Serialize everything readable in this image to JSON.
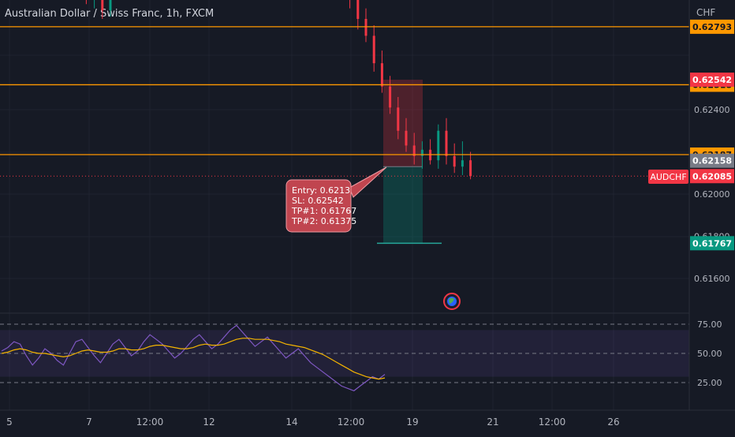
{
  "header": {
    "title": "Australian Dollar / Swiss Franc, 1h, FXCM"
  },
  "chart_data": {
    "type": "candlestick",
    "symbol": "AUDCHF",
    "currency_label": "CHF",
    "price_axis": {
      "range": [
        0.6147,
        0.6295
      ],
      "tick_values": [
        0.624,
        0.62,
        0.618,
        0.616
      ],
      "tick_labels": [
        "0.62400",
        "0.62000",
        "0.61800",
        "0.61600"
      ]
    },
    "time_axis": {
      "tick_labels": [
        "5",
        "7",
        "12:00",
        "12",
        "14",
        "12:00",
        "19",
        "21",
        "12:00",
        "26"
      ]
    },
    "horizontal_lines": [
      {
        "price": 0.62793,
        "label": "0.62793"
      },
      {
        "price": 0.62518,
        "label": "0.62518"
      },
      {
        "price": 0.62187,
        "label": "0.62187"
      }
    ],
    "price_badges": [
      {
        "price": 0.62542,
        "label": "0.62542",
        "color": "#f23645"
      },
      {
        "price": 0.62158,
        "label": "0.62158",
        "color": "#787b86"
      },
      {
        "price": 0.62085,
        "label": "0.62085",
        "color": "#f23645"
      },
      {
        "price": 0.61767,
        "label": "0.61767",
        "color": "#089981"
      }
    ],
    "last_price": {
      "price": 0.62085,
      "symbol_badge": "AUDCHF"
    },
    "candles": [
      {
        "t": 0,
        "o": 0.6301,
        "h": 0.6312,
        "l": 0.629,
        "c": 0.6296
      },
      {
        "t": 1,
        "o": 0.6296,
        "h": 0.6305,
        "l": 0.6288,
        "c": 0.63
      },
      {
        "t": 2,
        "o": 0.63,
        "h": 0.6308,
        "l": 0.6283,
        "c": 0.6287
      },
      {
        "t": 3,
        "o": 0.6287,
        "h": 0.63,
        "l": 0.6284,
        "c": 0.6296
      },
      {
        "t": 20,
        "o": 0.6304,
        "h": 0.6315,
        "l": 0.6296,
        "c": 0.6301
      },
      {
        "t": 21,
        "o": 0.6301,
        "h": 0.6306,
        "l": 0.6288,
        "c": 0.6292
      },
      {
        "t": 22,
        "o": 0.6292,
        "h": 0.6298,
        "l": 0.6278,
        "c": 0.6283
      },
      {
        "t": 23,
        "o": 0.6283,
        "h": 0.6288,
        "l": 0.6272,
        "c": 0.6275
      },
      {
        "t": 24,
        "o": 0.6275,
        "h": 0.628,
        "l": 0.6258,
        "c": 0.6262
      },
      {
        "t": 25,
        "o": 0.6262,
        "h": 0.6268,
        "l": 0.6248,
        "c": 0.6251
      },
      {
        "t": 26,
        "o": 0.6251,
        "h": 0.6256,
        "l": 0.6238,
        "c": 0.6241
      },
      {
        "t": 27,
        "o": 0.6241,
        "h": 0.6246,
        "l": 0.6226,
        "c": 0.623
      },
      {
        "t": 28,
        "o": 0.623,
        "h": 0.6236,
        "l": 0.622,
        "c": 0.6223
      },
      {
        "t": 29,
        "o": 0.6223,
        "h": 0.6229,
        "l": 0.6214,
        "c": 0.6218
      },
      {
        "t": 30,
        "o": 0.6218,
        "h": 0.6225,
        "l": 0.6212,
        "c": 0.6221
      },
      {
        "t": 31,
        "o": 0.6221,
        "h": 0.6226,
        "l": 0.6214,
        "c": 0.6216
      },
      {
        "t": 32,
        "o": 0.6216,
        "h": 0.6233,
        "l": 0.6212,
        "c": 0.623
      },
      {
        "t": 33,
        "o": 0.623,
        "h": 0.6236,
        "l": 0.6214,
        "c": 0.6218
      },
      {
        "t": 34,
        "o": 0.6218,
        "h": 0.6224,
        "l": 0.621,
        "c": 0.6213
      },
      {
        "t": 35,
        "o": 0.6213,
        "h": 0.6225,
        "l": 0.6209,
        "c": 0.6216
      },
      {
        "t": 36,
        "o": 0.6216,
        "h": 0.622,
        "l": 0.6207,
        "c": 0.62085
      }
    ],
    "position": {
      "entry": 0.6213,
      "stop_loss": 0.62542,
      "take_profit": 0.61767,
      "note_lines": [
        "Entry: 0.6213",
        "SL: 0.62542",
        "TP#1: 0.61767",
        "TP#2: 0.61375"
      ]
    },
    "rsi": {
      "range": [
        0,
        100
      ],
      "levels": [
        75,
        50,
        25
      ],
      "level_labels": [
        "75.00",
        "50.00",
        "25.00"
      ],
      "band": [
        30,
        70
      ],
      "rsi_values": [
        52,
        55,
        60,
        58,
        48,
        40,
        46,
        54,
        50,
        44,
        40,
        50,
        60,
        62,
        55,
        48,
        42,
        50,
        58,
        62,
        55,
        48,
        52,
        60,
        66,
        62,
        58,
        52,
        46,
        50,
        56,
        62,
        66,
        60,
        54,
        58,
        64,
        70,
        74,
        68,
        62,
        56,
        60,
        64,
        58,
        52,
        46,
        50,
        54,
        48,
        42,
        38,
        34,
        30,
        26,
        22,
        20,
        18,
        22,
        26,
        30,
        28,
        32
      ],
      "ma_values": [
        50,
        51,
        53,
        54,
        53,
        51,
        50,
        50,
        49,
        48,
        47,
        48,
        50,
        52,
        53,
        52,
        51,
        51,
        52,
        54,
        54,
        53,
        53,
        54,
        56,
        57,
        57,
        56,
        55,
        54,
        54,
        55,
        57,
        58,
        57,
        57,
        58,
        60,
        62,
        63,
        63,
        62,
        62,
        62,
        61,
        60,
        58,
        57,
        56,
        55,
        53,
        51,
        49,
        46,
        43,
        40,
        37,
        34,
        32,
        30,
        29,
        28,
        29
      ]
    }
  }
}
